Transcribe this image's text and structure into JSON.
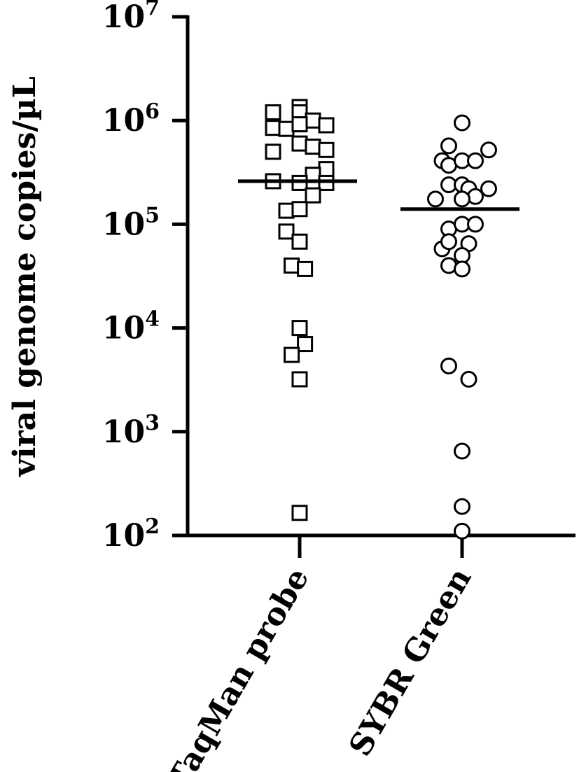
{
  "chart_data": {
    "type": "scatter",
    "ylabel": "viral genome copies/µL",
    "xlabel": "",
    "yscale": "log",
    "ylim": [
      100,
      10000000
    ],
    "yticks": [
      {
        "value": 100,
        "base": "10",
        "exp": "2"
      },
      {
        "value": 1000,
        "base": "10",
        "exp": "3"
      },
      {
        "value": 10000,
        "base": "10",
        "exp": "4"
      },
      {
        "value": 100000,
        "base": "10",
        "exp": "5"
      },
      {
        "value": 1000000,
        "base": "10",
        "exp": "6"
      },
      {
        "value": 10000000,
        "base": "10",
        "exp": "7"
      }
    ],
    "categories": [
      "TaqMan probe",
      "SYBR Green"
    ],
    "series": [
      {
        "category": "TaqMan probe",
        "marker": "square",
        "median": 260000,
        "points": [
          {
            "jitter": -2,
            "y": 1200000
          },
          {
            "jitter": 0,
            "y": 1350000
          },
          {
            "jitter": 0,
            "y": 1200000
          },
          {
            "jitter": 1,
            "y": 1000000
          },
          {
            "jitter": 2,
            "y": 900000
          },
          {
            "jitter": -2,
            "y": 850000
          },
          {
            "jitter": -1,
            "y": 830000
          },
          {
            "jitter": 0,
            "y": 920000
          },
          {
            "jitter": -2,
            "y": 500000
          },
          {
            "jitter": 0,
            "y": 600000
          },
          {
            "jitter": 1,
            "y": 560000
          },
          {
            "jitter": 2,
            "y": 520000
          },
          {
            "jitter": 2,
            "y": 340000
          },
          {
            "jitter": 1,
            "y": 300000
          },
          {
            "jitter": -2,
            "y": 260000
          },
          {
            "jitter": 0,
            "y": 250000
          },
          {
            "jitter": 2,
            "y": 250000
          },
          {
            "jitter": 1,
            "y": 190000
          },
          {
            "jitter": -1,
            "y": 135000
          },
          {
            "jitter": 0,
            "y": 140000
          },
          {
            "jitter": -1,
            "y": 85000
          },
          {
            "jitter": 0,
            "y": 68000
          },
          {
            "jitter": -0.6,
            "y": 40000
          },
          {
            "jitter": 0.4,
            "y": 37000
          },
          {
            "jitter": 0,
            "y": 10000
          },
          {
            "jitter": 0.4,
            "y": 7000
          },
          {
            "jitter": -0.6,
            "y": 5500
          },
          {
            "jitter": 0,
            "y": 3200
          },
          {
            "jitter": 0,
            "y": 165
          }
        ]
      },
      {
        "category": "SYBR Green",
        "marker": "circle",
        "median": 140000,
        "points": [
          {
            "jitter": 0,
            "y": 950000
          },
          {
            "jitter": -1,
            "y": 570000
          },
          {
            "jitter": 2,
            "y": 520000
          },
          {
            "jitter": -1.5,
            "y": 410000
          },
          {
            "jitter": -1,
            "y": 370000
          },
          {
            "jitter": 0,
            "y": 410000
          },
          {
            "jitter": 1,
            "y": 410000
          },
          {
            "jitter": -2,
            "y": 175000
          },
          {
            "jitter": -1,
            "y": 240000
          },
          {
            "jitter": 0,
            "y": 240000
          },
          {
            "jitter": 0.5,
            "y": 220000
          },
          {
            "jitter": 1,
            "y": 185000
          },
          {
            "jitter": 2,
            "y": 220000
          },
          {
            "jitter": 0,
            "y": 175000
          },
          {
            "jitter": -1,
            "y": 90000
          },
          {
            "jitter": 0,
            "y": 100000
          },
          {
            "jitter": 1,
            "y": 100000
          },
          {
            "jitter": -1.5,
            "y": 58000
          },
          {
            "jitter": -1,
            "y": 68000
          },
          {
            "jitter": 0.5,
            "y": 65000
          },
          {
            "jitter": 0,
            "y": 50000
          },
          {
            "jitter": -1,
            "y": 40000
          },
          {
            "jitter": 0,
            "y": 37000
          },
          {
            "jitter": -1,
            "y": 4300
          },
          {
            "jitter": 0.5,
            "y": 3200
          },
          {
            "jitter": 0,
            "y": 650
          },
          {
            "jitter": 0,
            "y": 190
          },
          {
            "jitter": 0,
            "y": 110
          }
        ]
      }
    ]
  }
}
